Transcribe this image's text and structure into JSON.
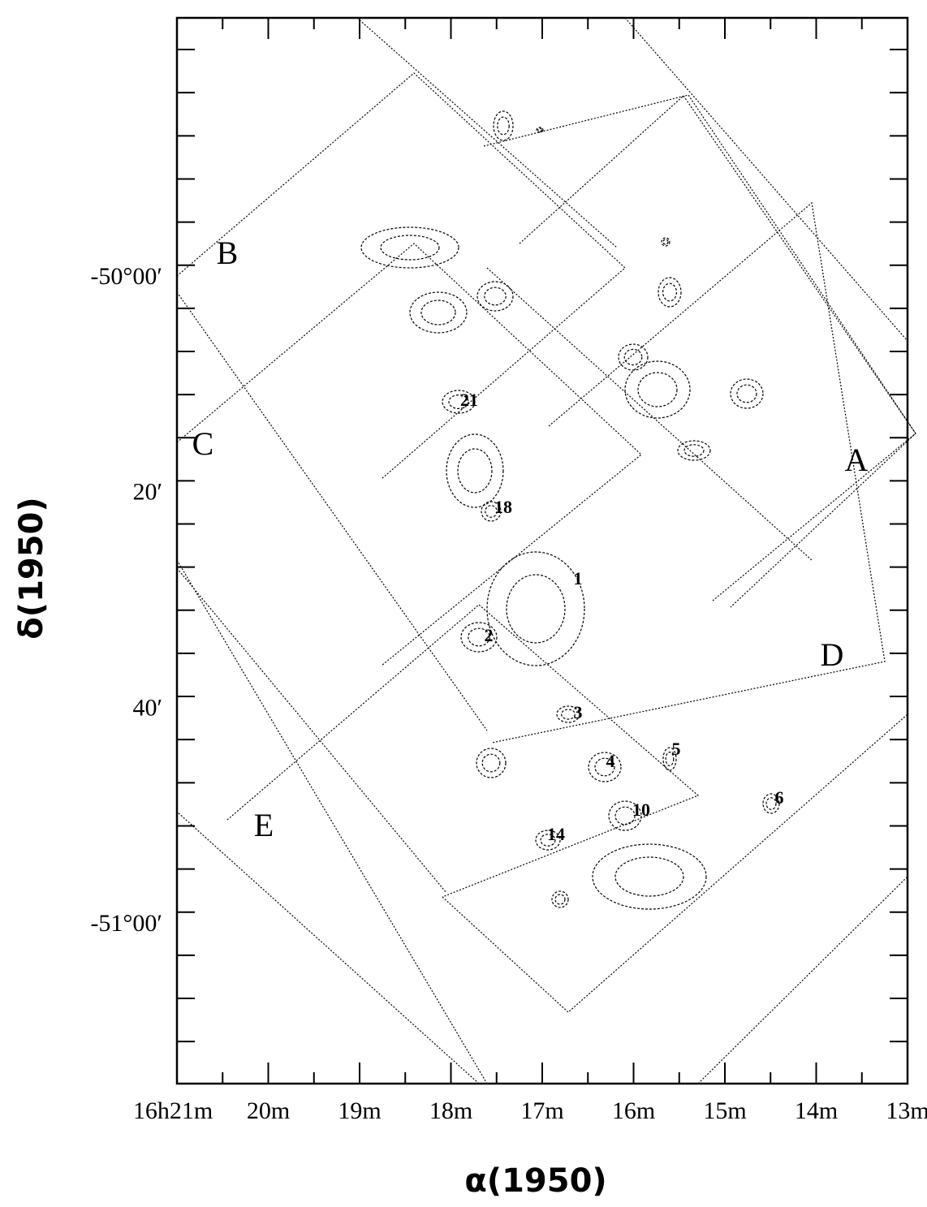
{
  "chart_data": {
    "type": "scatter",
    "x_axis": {
      "label": "α(1950)",
      "ticks": [
        {
          "value_min": 21,
          "label": "16h21m"
        },
        {
          "value_min": 20,
          "label": "20m"
        },
        {
          "value_min": 19,
          "label": "19m"
        },
        {
          "value_min": 18,
          "label": "18m"
        },
        {
          "value_min": 17,
          "label": "17m"
        },
        {
          "value_min": 16,
          "label": "16m"
        },
        {
          "value_min": 15,
          "label": "15m"
        },
        {
          "value_min": 14,
          "label": "14m"
        },
        {
          "value_min": 13,
          "label": "13m"
        }
      ],
      "range": [
        21,
        12.9
      ],
      "reversed": true
    },
    "y_axis": {
      "label": "δ(1950)",
      "ticks": [
        {
          "value_arcmin": -2960,
          "label": "40′"
        },
        {
          "value_arcmin": -3000,
          "label": "-50°00′"
        },
        {
          "value_arcmin": -3020,
          "label": "20′"
        },
        {
          "value_arcmin": -3040,
          "label": "40′"
        },
        {
          "value_arcmin": -3060,
          "label": "-51°00′"
        }
      ],
      "range": [
        -3075,
        -2955
      ]
    },
    "field_labels": [
      {
        "text": "A",
        "ra_min": 13.6,
        "dec_arcmin": -3018
      },
      {
        "text": "B",
        "ra_min": 20.3,
        "dec_arcmin": -2999
      },
      {
        "text": "C",
        "ra_min": 20.6,
        "dec_arcmin": -3015
      },
      {
        "text": "D",
        "ra_min": 13.9,
        "dec_arcmin": -3033
      },
      {
        "text": "E",
        "ra_min": 19.0,
        "dec_arcmin": -3050
      }
    ],
    "source_labels": [
      {
        "text": "1",
        "ra_min": 17.0,
        "dec_arcmin": -3029
      },
      {
        "text": "2",
        "ra_min": 18.3,
        "dec_arcmin": -3034
      },
      {
        "text": "3",
        "ra_min": 16.6,
        "dec_arcmin": -3038
      },
      {
        "text": "4",
        "ra_min": 16.2,
        "dec_arcmin": -3044
      },
      {
        "text": "5",
        "ra_min": 15.5,
        "dec_arcmin": -3043
      },
      {
        "text": "6",
        "ra_min": 14.6,
        "dec_arcmin": -3046
      },
      {
        "text": "10",
        "ra_min": 15.8,
        "dec_arcmin": -3049
      },
      {
        "text": "14",
        "ra_min": 17.1,
        "dec_arcmin": -3051
      },
      {
        "text": "18",
        "ra_min": 17.5,
        "dec_arcmin": -3024
      },
      {
        "text": "21",
        "ra_min": 18.0,
        "dec_arcmin": -3014
      }
    ],
    "grid": false
  }
}
